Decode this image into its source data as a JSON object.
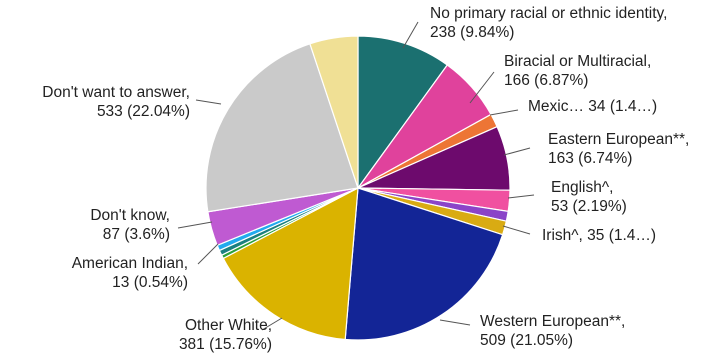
{
  "chart_data": {
    "type": "pie",
    "title": "",
    "start_angle_deg": 0,
    "slices": [
      {
        "label": "No primary racial or ethnic identity",
        "value": 238,
        "percent": 9.84,
        "color": "#1b7070",
        "label_lines": [
          "No primary racial or ethnic identity,",
          "238 (9.84%)"
        ]
      },
      {
        "label": "Biracial or Multiracial",
        "value": 166,
        "percent": 6.87,
        "color": "#e0429c",
        "label_lines": [
          "Biracial or Multiracial,",
          "166 (6.87%)"
        ]
      },
      {
        "label": "Mexic…",
        "value": 34,
        "percent": 1.4,
        "color": "#ed7535",
        "label_lines": [
          "Mexic… 34 (1.4…)"
        ]
      },
      {
        "label": "Eastern European**",
        "value": 163,
        "percent": 6.74,
        "color": "#6d0a6d",
        "label_lines": [
          "Eastern European**,",
          "163 (6.74%)"
        ]
      },
      {
        "label": "English^",
        "value": 53,
        "percent": 2.19,
        "color": "#f050a0",
        "label_lines": [
          "English^,",
          "53 (2.19%)"
        ]
      },
      {
        "label": "",
        "value": 25,
        "percent": 1.03,
        "color": "#8b44c8",
        "label_lines": []
      },
      {
        "label": "Irish^",
        "value": 35,
        "percent": 1.4,
        "color": "#d9ab13",
        "label_lines": [
          "Irish^, 35 (1.4…)"
        ]
      },
      {
        "label": "Western European**",
        "value": 509,
        "percent": 21.05,
        "color": "#132596",
        "label_lines": [
          "Western European**,",
          "509 (21.05%)"
        ]
      },
      {
        "label": "Other White",
        "value": 381,
        "percent": 15.76,
        "color": "#dab300",
        "label_lines": [
          "Other White,",
          "381 (15.76%)"
        ]
      },
      {
        "label": "",
        "value": 9,
        "percent": 0.37,
        "color": "#2aa13a",
        "label_lines": []
      },
      {
        "label": "American Indian",
        "value": 13,
        "percent": 0.54,
        "color": "#1b8080",
        "label_lines": [
          "American Indian,",
          "13 (0.54%)"
        ]
      },
      {
        "label": "",
        "value": 14,
        "percent": 0.58,
        "color": "#22aaee",
        "label_lines": []
      },
      {
        "label": "Don't know",
        "value": 87,
        "percent": 3.6,
        "color": "#bf5ad2",
        "label_lines": [
          "Don't know,",
          "87 (3.6%)"
        ]
      },
      {
        "label": "Don't want to answer",
        "value": 533,
        "percent": 22.04,
        "color": "#cacaca",
        "label_lines": [
          "Don't want to answer,",
          "533 (22.04%)"
        ]
      },
      {
        "label": "",
        "value": 122,
        "percent": 5.04,
        "color": "#f0e095",
        "label_lines": []
      }
    ]
  }
}
